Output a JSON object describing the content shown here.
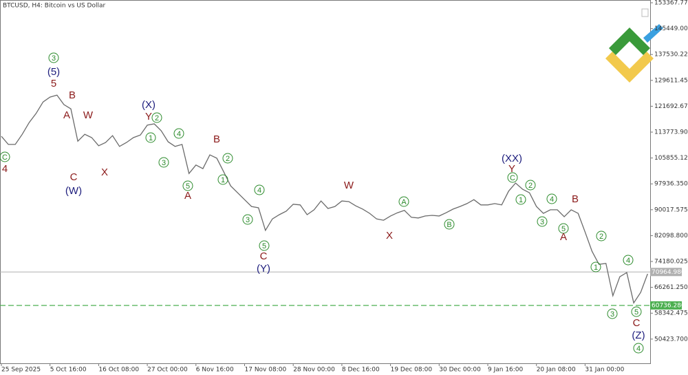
{
  "chart_data": {
    "type": "line",
    "title": "BTCUSD, H4:  Bitcoin vs US Dollar",
    "color": "#6a6a6a",
    "categories": [
      "25 Sep 2025",
      null,
      null,
      null,
      null,
      null,
      null,
      "5 Oct 16:00",
      null,
      null,
      null,
      null,
      null,
      null,
      "16 Oct 08:00",
      null,
      null,
      null,
      null,
      null,
      null,
      "27 Oct 00:00",
      null,
      null,
      null,
      null,
      null,
      null,
      "6 Nov 16:00",
      null,
      null,
      null,
      null,
      null,
      null,
      "17 Nov 08:00",
      null,
      null,
      null,
      null,
      null,
      null,
      "28 Nov 00:00",
      null,
      null,
      null,
      null,
      null,
      null,
      "8 Dec 16:00",
      null,
      null,
      null,
      null,
      null,
      null,
      "19 Dec 08:00",
      null,
      null,
      null,
      null,
      null,
      null,
      "30 Dec 00:00",
      null,
      null,
      null,
      null,
      null,
      null,
      "9 Jan 16:00",
      null,
      null,
      null,
      null,
      null,
      null,
      "20 Jan 08:00",
      null,
      null,
      null,
      null,
      null,
      null,
      "31 Jan 00:00",
      null,
      null,
      null,
      null,
      null,
      null,
      null,
      null,
      null
    ],
    "values": [
      112500,
      110000,
      110000,
      113100,
      116700,
      119500,
      123000,
      124500,
      125100,
      122200,
      120900,
      111000,
      113100,
      112100,
      109600,
      110600,
      112700,
      109400,
      110600,
      112100,
      112900,
      115900,
      116300,
      114200,
      110800,
      109400,
      110000,
      101100,
      103700,
      102600,
      106800,
      105800,
      101600,
      97300,
      95200,
      93100,
      91000,
      90600,
      83700,
      87200,
      88500,
      89600,
      91700,
      91500,
      88500,
      90000,
      92700,
      90400,
      91000,
      92700,
      92500,
      91200,
      90200,
      88900,
      87200,
      86800,
      88100,
      89100,
      89800,
      87700,
      87500,
      88100,
      88300,
      88100,
      89100,
      90200,
      91000,
      91900,
      93100,
      91500,
      91500,
      91900,
      91500,
      95700,
      98200,
      96300,
      95200,
      91000,
      88900,
      90000,
      90000,
      87900,
      90000,
      88900,
      83200,
      77300,
      73300,
      73600,
      63700,
      69500,
      70800,
      61500,
      64700,
      70400
    ],
    "ylim": [
      43014,
      154210
    ],
    "yticks": [
      {
        "value": 153367.775,
        "label": "153367.775"
      },
      {
        "value": 145449,
        "label": "145449.000"
      },
      {
        "value": 137530.225,
        "label": "137530.225"
      },
      {
        "value": 129611.45,
        "label": "129611.450"
      },
      {
        "value": 121692.675,
        "label": "121692.675"
      },
      {
        "value": 113773.9,
        "label": "113773.900"
      },
      {
        "value": 105855.125,
        "label": "105855.125"
      },
      {
        "value": 97936.35,
        "label": "97936.350"
      },
      {
        "value": 90017.575,
        "label": "90017.575"
      },
      {
        "value": 82098.8,
        "label": "82098.800"
      },
      {
        "value": 74180.025,
        "label": "74180.025"
      },
      {
        "value": 66261.25,
        "label": "66261.250"
      },
      {
        "value": 58342.475,
        "label": "58342.475"
      },
      {
        "value": 50423.7,
        "label": "50423.700"
      }
    ],
    "price_lines": [
      {
        "value": 70964.98,
        "label": "70964.980",
        "color": "#b0b0b0",
        "dashed": false
      },
      {
        "value": 60736.28,
        "label": "60736.280",
        "color": "#4caf50",
        "dashed": true
      }
    ],
    "annotations": [
      {
        "text": "3",
        "color": "#2a8a2a",
        "circled": true
      },
      {
        "text": "(5)",
        "color": "#1c1c7c",
        "circled": false
      },
      {
        "text": "5",
        "color": "#8b1a1a",
        "circled": false
      },
      {
        "text": "B",
        "color": "#8b1a1a",
        "circled": false
      },
      {
        "text": "A",
        "color": "#8b1a1a",
        "circled": false
      },
      {
        "text": "W",
        "color": "#8b1a1a",
        "circled": false
      },
      {
        "text": "C",
        "color": "#8b1a1a",
        "circled": false
      },
      {
        "text": "(W)",
        "color": "#1c1c7c",
        "circled": false
      },
      {
        "text": "X",
        "color": "#8b1a1a",
        "circled": false
      },
      {
        "text": "(X)",
        "color": "#1c1c7c",
        "circled": false
      },
      {
        "text": "Y",
        "color": "#8b1a1a",
        "circled": false
      },
      {
        "text": "2",
        "color": "#2a8a2a",
        "circled": true
      },
      {
        "text": "1",
        "color": "#2a8a2a",
        "circled": true
      },
      {
        "text": "4",
        "color": "#2a8a2a",
        "circled": true
      },
      {
        "text": "3",
        "color": "#2a8a2a",
        "circled": true
      },
      {
        "text": "B",
        "color": "#8b1a1a",
        "circled": false
      },
      {
        "text": "2",
        "color": "#2a8a2a",
        "circled": true
      },
      {
        "text": "1",
        "color": "#2a8a2a",
        "circled": true
      },
      {
        "text": "5",
        "color": "#2a8a2a",
        "circled": true
      },
      {
        "text": "A",
        "color": "#8b1a1a",
        "circled": false
      },
      {
        "text": "4",
        "color": "#2a8a2a",
        "circled": true
      },
      {
        "text": "3",
        "color": "#2a8a2a",
        "circled": true
      },
      {
        "text": "5",
        "color": "#2a8a2a",
        "circled": true
      },
      {
        "text": "C",
        "color": "#8b1a1a",
        "circled": false
      },
      {
        "text": "(Y)",
        "color": "#1c1c7c",
        "circled": false
      },
      {
        "text": "W",
        "color": "#8b1a1a",
        "circled": false
      },
      {
        "text": "A",
        "color": "#2a8a2a",
        "circled": true
      },
      {
        "text": "B",
        "color": "#2a8a2a",
        "circled": true
      },
      {
        "text": "X",
        "color": "#8b1a1a",
        "circled": false
      },
      {
        "text": "(XX)",
        "color": "#1c1c7c",
        "circled": false
      },
      {
        "text": "Y",
        "color": "#8b1a1a",
        "circled": false
      },
      {
        "text": "C",
        "color": "#2a8a2a",
        "circled": true
      },
      {
        "text": "2",
        "color": "#2a8a2a",
        "circled": true
      },
      {
        "text": "1",
        "color": "#2a8a2a",
        "circled": true
      },
      {
        "text": "4",
        "color": "#2a8a2a",
        "circled": true
      },
      {
        "text": "3",
        "color": "#2a8a2a",
        "circled": true
      },
      {
        "text": "B",
        "color": "#8b1a1a",
        "circled": false
      },
      {
        "text": "5",
        "color": "#2a8a2a",
        "circled": true
      },
      {
        "text": "A",
        "color": "#8b1a1a",
        "circled": false
      },
      {
        "text": "2",
        "color": "#2a8a2a",
        "circled": true
      },
      {
        "text": "1",
        "color": "#2a8a2a",
        "circled": true
      },
      {
        "text": "4",
        "color": "#2a8a2a",
        "circled": true
      },
      {
        "text": "3",
        "color": "#2a8a2a",
        "circled": true
      },
      {
        "text": "5",
        "color": "#2a8a2a",
        "circled": true
      },
      {
        "text": "C",
        "color": "#8b1a1a",
        "circled": false
      },
      {
        "text": "(Z)",
        "color": "#1c1c7c",
        "circled": false
      },
      {
        "text": "4",
        "color": "#2a8a2a",
        "circled": true
      },
      {
        "text": "C",
        "color": "#2a8a2a",
        "circled": true
      },
      {
        "text": "4",
        "color": "#8b1a1a",
        "circled": false
      }
    ]
  }
}
